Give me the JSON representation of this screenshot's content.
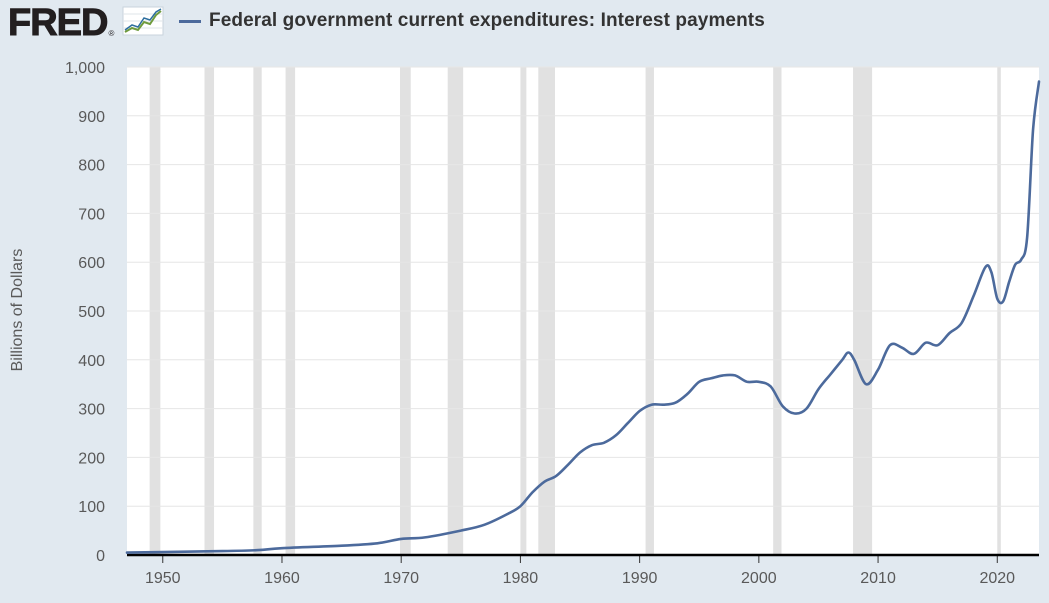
{
  "header": {
    "logo_text": "FRED",
    "logo_reg": "®",
    "legend_label": "Federal government current expenditures: Interest payments",
    "series_color": "#4c6a9c"
  },
  "chart_data": {
    "type": "line",
    "title": "Federal government current expenditures: Interest payments",
    "ylabel": "Billions of Dollars",
    "xlabel": "",
    "xlim": [
      1947,
      2023.5
    ],
    "ylim": [
      0,
      1000
    ],
    "yticks": [
      0,
      100,
      200,
      300,
      400,
      500,
      600,
      700,
      800,
      900,
      1000
    ],
    "ytick_labels": [
      "0",
      "100",
      "200",
      "300",
      "400",
      "500",
      "600",
      "700",
      "800",
      "900",
      "1,000"
    ],
    "xticks": [
      1950,
      1960,
      1970,
      1980,
      1990,
      2000,
      2010,
      2020
    ],
    "xtick_labels": [
      "1950",
      "1960",
      "1970",
      "1980",
      "1990",
      "2000",
      "2010",
      "2020"
    ],
    "grid": "horizontal",
    "recession_color": "#e1e1e1",
    "recessions": [
      [
        1948.9,
        1949.8
      ],
      [
        1953.5,
        1954.3
      ],
      [
        1957.6,
        1958.3
      ],
      [
        1960.3,
        1961.1
      ],
      [
        1969.9,
        1970.8
      ],
      [
        1973.9,
        1975.2
      ],
      [
        1980.0,
        1980.5
      ],
      [
        1981.5,
        1982.9
      ],
      [
        1990.5,
        1991.2
      ],
      [
        2001.2,
        2001.9
      ],
      [
        2007.9,
        2009.5
      ],
      [
        2020.0,
        2020.3
      ]
    ],
    "series": [
      {
        "name": "Federal government current expenditures: Interest payments",
        "color": "#4c6a9c",
        "x": [
          1947,
          1950,
          1955,
          1958,
          1960,
          1965,
          1968,
          1970,
          1972,
          1975,
          1977,
          1979,
          1980,
          1981,
          1982,
          1983,
          1984,
          1985,
          1986,
          1987,
          1988,
          1989,
          1990,
          1991,
          1992,
          1993,
          1994,
          1995,
          1996,
          1997,
          1998,
          1999,
          2000,
          2001,
          2002,
          2003,
          2004,
          2005,
          2006,
          2007,
          2007.5,
          2008,
          2009,
          2010,
          2011,
          2012,
          2013,
          2014,
          2015,
          2016,
          2017,
          2018,
          2019,
          2019.5,
          2020,
          2020.5,
          2021,
          2021.5,
          2022,
          2022.5,
          2023,
          2023.5
        ],
        "y": [
          5,
          6,
          8,
          10,
          14,
          19,
          24,
          33,
          36,
          50,
          62,
          85,
          100,
          128,
          150,
          162,
          185,
          210,
          225,
          230,
          245,
          270,
          295,
          308,
          308,
          312,
          330,
          355,
          362,
          368,
          368,
          355,
          355,
          345,
          305,
          290,
          300,
          340,
          370,
          400,
          415,
          400,
          350,
          380,
          430,
          425,
          412,
          435,
          430,
          455,
          475,
          530,
          590,
          580,
          525,
          520,
          560,
          595,
          605,
          650,
          870,
          970
        ]
      }
    ]
  }
}
